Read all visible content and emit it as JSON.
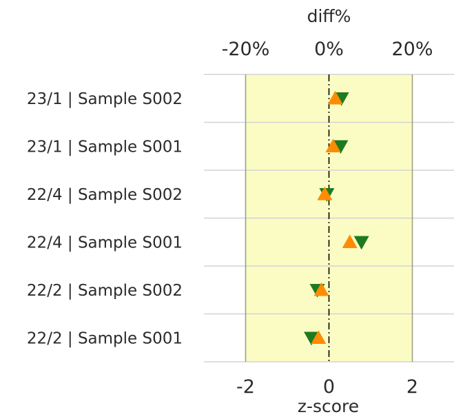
{
  "chart_data": {
    "type": "scatter",
    "orientation": "horizontal",
    "top_axis": {
      "label": "diff%",
      "ticks": [
        -20,
        0,
        20
      ],
      "tick_labels": [
        "-20%",
        "0%",
        "20%"
      ]
    },
    "bottom_axis": {
      "label": "z-score",
      "ticks": [
        -2,
        0,
        2
      ],
      "tick_labels": [
        "-2",
        "0",
        "2"
      ],
      "range": [
        -3,
        3
      ]
    },
    "acceptance_band": {
      "range": [
        -2,
        2
      ],
      "color": "#fafcc4"
    },
    "reference_line": {
      "value": 0,
      "style": "dash-dot"
    },
    "categories": [
      "23/1 | Sample S002",
      "23/1 | Sample S001",
      "22/4 | Sample S002",
      "22/4 | Sample S001",
      "22/2 | Sample S002",
      "22/2 | Sample S001"
    ],
    "series": [
      {
        "marker": "triangle-down",
        "color": "#1f7a1f",
        "values": [
          0.3,
          0.28,
          -0.05,
          0.78,
          -0.28,
          -0.42
        ]
      },
      {
        "marker": "triangle-up",
        "color": "#ff8c00",
        "values": [
          0.15,
          0.1,
          -0.1,
          0.5,
          -0.18,
          -0.25
        ]
      }
    ],
    "grid": true,
    "legend": "none"
  }
}
